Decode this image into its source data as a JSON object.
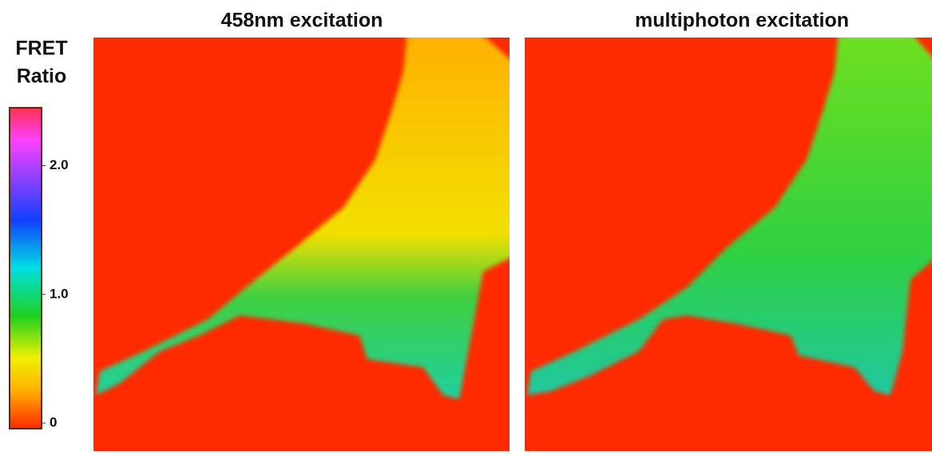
{
  "colorbar": {
    "title": [
      "FRET",
      "Ratio"
    ],
    "lim": [
      0,
      2.45
    ],
    "ticks": [
      0,
      {
        "value": 1,
        "label": "1.0"
      },
      {
        "value": 2,
        "label": "2.0"
      }
    ]
  },
  "panels": [
    {
      "title": "458nm excitation"
    },
    {
      "title": "multiphoton excitation"
    }
  ]
}
